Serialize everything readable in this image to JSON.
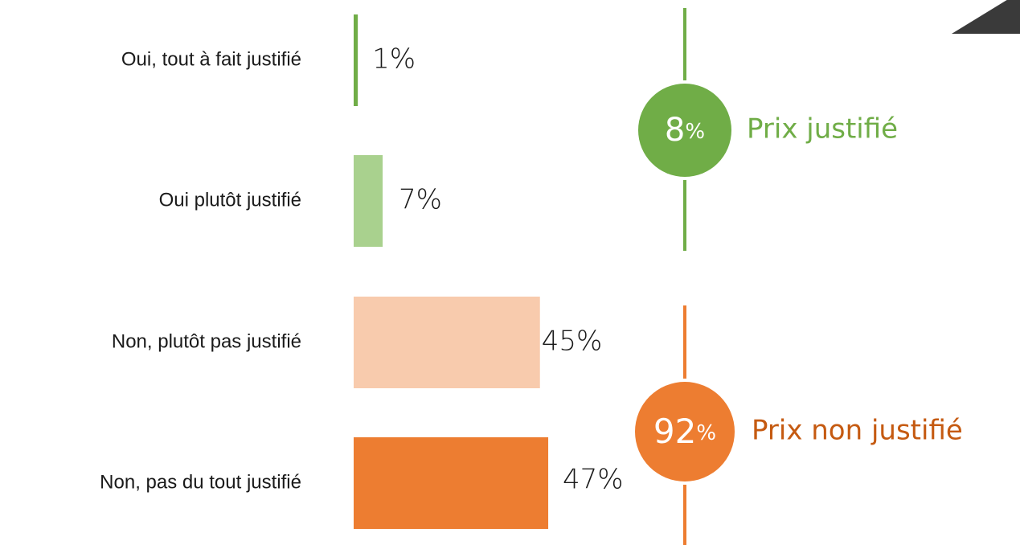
{
  "chart_data": {
    "type": "bar",
    "orientation": "horizontal",
    "categories": [
      "Oui, tout à fait justifié",
      "Oui plutôt justifié",
      "Non, plutôt pas justifié",
      "Non, pas du tout justifié"
    ],
    "values": [
      1,
      7,
      45,
      47
    ],
    "value_labels": [
      "1%",
      "7%",
      "45%",
      "47%"
    ],
    "unit": "%",
    "colors": [
      "#70ad47",
      "#a9d18e",
      "#f8cbad",
      "#ed7d31"
    ],
    "groups": [
      {
        "value": "8",
        "unit": "%",
        "label": "Prix justifié",
        "color": "#70ad47",
        "categories": [
          "Oui, tout à fait justifié",
          "Oui plutôt justifié"
        ]
      },
      {
        "value": "92",
        "unit": "%",
        "label": "Prix non justifié",
        "color": "#ed7d31",
        "text_color": "#c55a11",
        "categories": [
          "Non, plutôt pas justifié",
          "Non, pas du tout justifié"
        ]
      }
    ],
    "xlim": [
      0,
      100
    ],
    "grid": false,
    "legend": "none"
  },
  "decor": {
    "corner_color": "#3a3a3a"
  }
}
